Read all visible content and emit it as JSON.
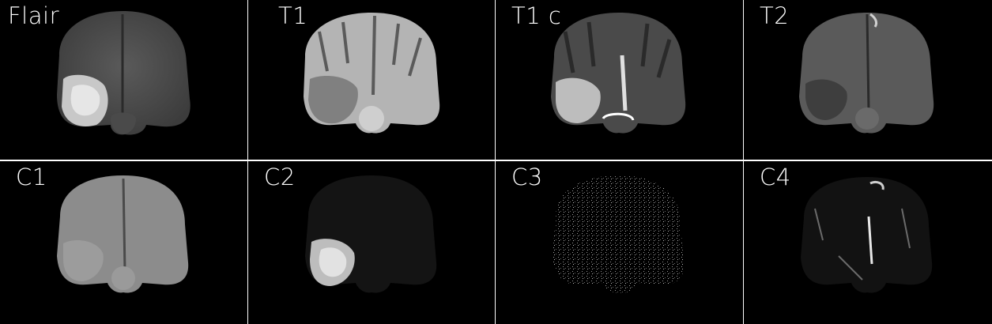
{
  "panels": [
    {
      "label": "Flair"
    },
    {
      "label": "T1"
    },
    {
      "label": "T1 c"
    },
    {
      "label": "T2"
    },
    {
      "label": "C1"
    },
    {
      "label": "C2"
    },
    {
      "label": "C3"
    },
    {
      "label": "C4"
    }
  ]
}
